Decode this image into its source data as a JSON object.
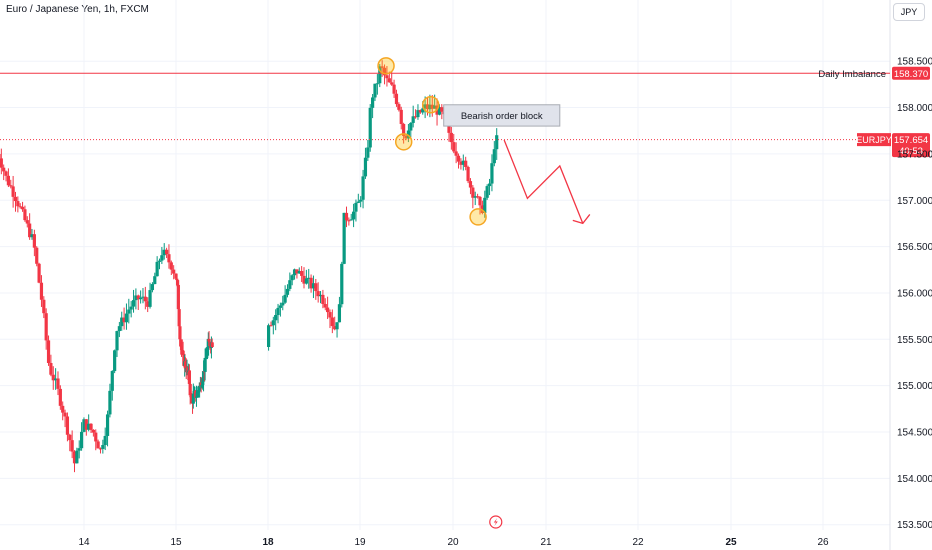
{
  "header": {
    "title": "Euro / Japanese Yen, 1h, FXCM",
    "currency": "JPY"
  },
  "colors": {
    "up": "#089981",
    "down": "#f23645",
    "grid": "#f0f3fa",
    "arrow": "#f23645"
  },
  "annotations": {
    "daily_imbalance": {
      "label": "Daily Imbalance",
      "price": "158.370"
    },
    "bearish_order_block": {
      "label": "Bearish order block"
    },
    "symbol_tag": {
      "symbol": "EURJPY",
      "price": "157.654",
      "countdown": "40:53"
    },
    "overlap_label": "157.500"
  },
  "icons": {
    "time_marker": "flash-icon"
  },
  "chart_data": {
    "type": "candlestick",
    "title": "Euro / Japanese Yen, 1h, FXCM",
    "ylim": [
      153.43,
      158.83
    ],
    "y_ticks": [
      "158.500",
      "158.000",
      "157.500",
      "157.000",
      "156.500",
      "156.000",
      "155.500",
      "155.000",
      "154.500",
      "154.000",
      "153.500"
    ],
    "x_ticks": [
      {
        "label": "14",
        "day": 14,
        "bold": false
      },
      {
        "label": "15",
        "day": 15,
        "bold": false
      },
      {
        "label": "18",
        "day": 18,
        "bold": true
      },
      {
        "label": "19",
        "day": 19,
        "bold": false
      },
      {
        "label": "20",
        "day": 20,
        "bold": false
      },
      {
        "label": "21",
        "day": 21,
        "bold": false
      },
      {
        "label": "22",
        "day": 22,
        "bold": false
      },
      {
        "label": "25",
        "day": 25,
        "bold": true
      },
      {
        "label": "26",
        "day": 26,
        "bold": false
      }
    ],
    "anchors": [
      [
        13.07,
        157.5
      ],
      [
        13.15,
        157.25
      ],
      [
        13.25,
        157.05
      ],
      [
        13.35,
        156.8
      ],
      [
        13.45,
        156.55
      ],
      [
        13.55,
        155.85
      ],
      [
        13.62,
        155.2
      ],
      [
        13.7,
        155.0
      ],
      [
        13.78,
        154.7
      ],
      [
        13.85,
        154.4
      ],
      [
        13.9,
        154.15
      ],
      [
        14.0,
        154.6
      ],
      [
        14.1,
        154.5
      ],
      [
        14.18,
        154.3
      ],
      [
        14.25,
        154.6
      ],
      [
        14.35,
        155.6
      ],
      [
        14.42,
        155.7
      ],
      [
        14.5,
        155.85
      ],
      [
        14.6,
        155.95
      ],
      [
        14.7,
        155.9
      ],
      [
        14.8,
        156.3
      ],
      [
        14.85,
        156.45
      ],
      [
        14.95,
        156.3
      ],
      [
        15.05,
        156.05
      ],
      [
        15.1,
        155.7
      ],
      [
        15.15,
        155.45
      ],
      [
        15.22,
        155.3
      ],
      [
        15.32,
        155.2
      ],
      [
        15.42,
        155.1
      ],
      [
        15.5,
        154.8
      ],
      [
        15.58,
        154.9
      ],
      [
        15.68,
        154.9
      ],
      [
        15.78,
        155.0
      ],
      [
        15.88,
        155.1
      ],
      [
        15.98,
        155.3
      ],
      [
        16.05,
        155.45
      ],
      [
        18.05,
        155.7
      ],
      [
        18.15,
        155.9
      ],
      [
        18.3,
        156.25
      ],
      [
        18.4,
        156.15
      ],
      [
        18.55,
        156.0
      ],
      [
        18.65,
        155.85
      ],
      [
        18.72,
        155.6
      ],
      [
        18.78,
        155.85
      ],
      [
        18.82,
        156.8
      ],
      [
        18.92,
        156.85
      ],
      [
        19.0,
        157.0
      ],
      [
        19.08,
        157.55
      ],
      [
        19.12,
        158.1
      ],
      [
        19.18,
        158.25
      ],
      [
        19.22,
        158.45
      ],
      [
        19.28,
        158.3
      ],
      [
        19.35,
        158.2
      ],
      [
        19.42,
        158.0
      ],
      [
        19.48,
        157.65
      ],
      [
        19.52,
        157.8
      ],
      [
        19.6,
        157.9
      ],
      [
        19.7,
        158.0
      ],
      [
        19.8,
        158.0
      ],
      [
        19.9,
        157.9
      ],
      [
        19.95,
        157.7
      ],
      [
        20.02,
        157.55
      ],
      [
        20.1,
        157.4
      ],
      [
        20.15,
        157.3
      ],
      [
        20.2,
        157.1
      ],
      [
        20.25,
        157.05
      ],
      [
        20.3,
        156.85
      ],
      [
        20.35,
        157.05
      ],
      [
        20.4,
        157.2
      ],
      [
        20.45,
        157.65
      ]
    ],
    "candle_count": 220,
    "start_day": 13.05,
    "end_day": 20.47,
    "projection": [
      [
        20.55,
        157.65
      ],
      [
        20.8,
        157.02
      ],
      [
        21.15,
        157.37
      ],
      [
        21.4,
        156.75
      ]
    ]
  }
}
